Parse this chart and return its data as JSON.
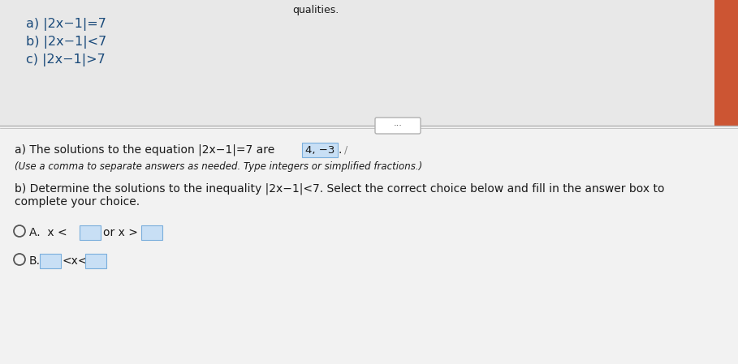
{
  "top_bg": "#e8e8e8",
  "bottom_bg": "#f2f2f2",
  "top_text_color": "#1a4a7a",
  "body_text_color": "#1a1a1a",
  "blue_bold_color": "#1a3a6a",
  "answer_box_fill": "#c8dff5",
  "answer_box_edge": "#7aaedc",
  "divider_color": "#b0b0b0",
  "radio_color": "#555555",
  "italic_text_color": "#1a1a1a",
  "top_lines": [
    "a) |2x−1|=7",
    "b) |2x−1|<7",
    "c) |2x−1|>7"
  ],
  "pill_text": "···",
  "part_a_prefix": "a) The solutions to the equation |2x−1|=7 are ",
  "part_a_answer": "4, −3",
  "part_a_suffix": ".",
  "part_a_cursor": "/",
  "part_a_note": "(Use a comma to separate answers as needed. Type integers or simplified fractions.)",
  "part_b_line1": "b) Determine the solutions to the inequality |2x−1|<7. Select the correct choice below and fill in the answer box to",
  "part_b_line2": "complete your choice.",
  "choiceA_pre": "A.  x <",
  "choiceA_mid": "or x >",
  "choiceB_pre": "B.",
  "choiceB_mid": "<x<",
  "top_right_color": "#cc5533",
  "title_partial": "qualities."
}
